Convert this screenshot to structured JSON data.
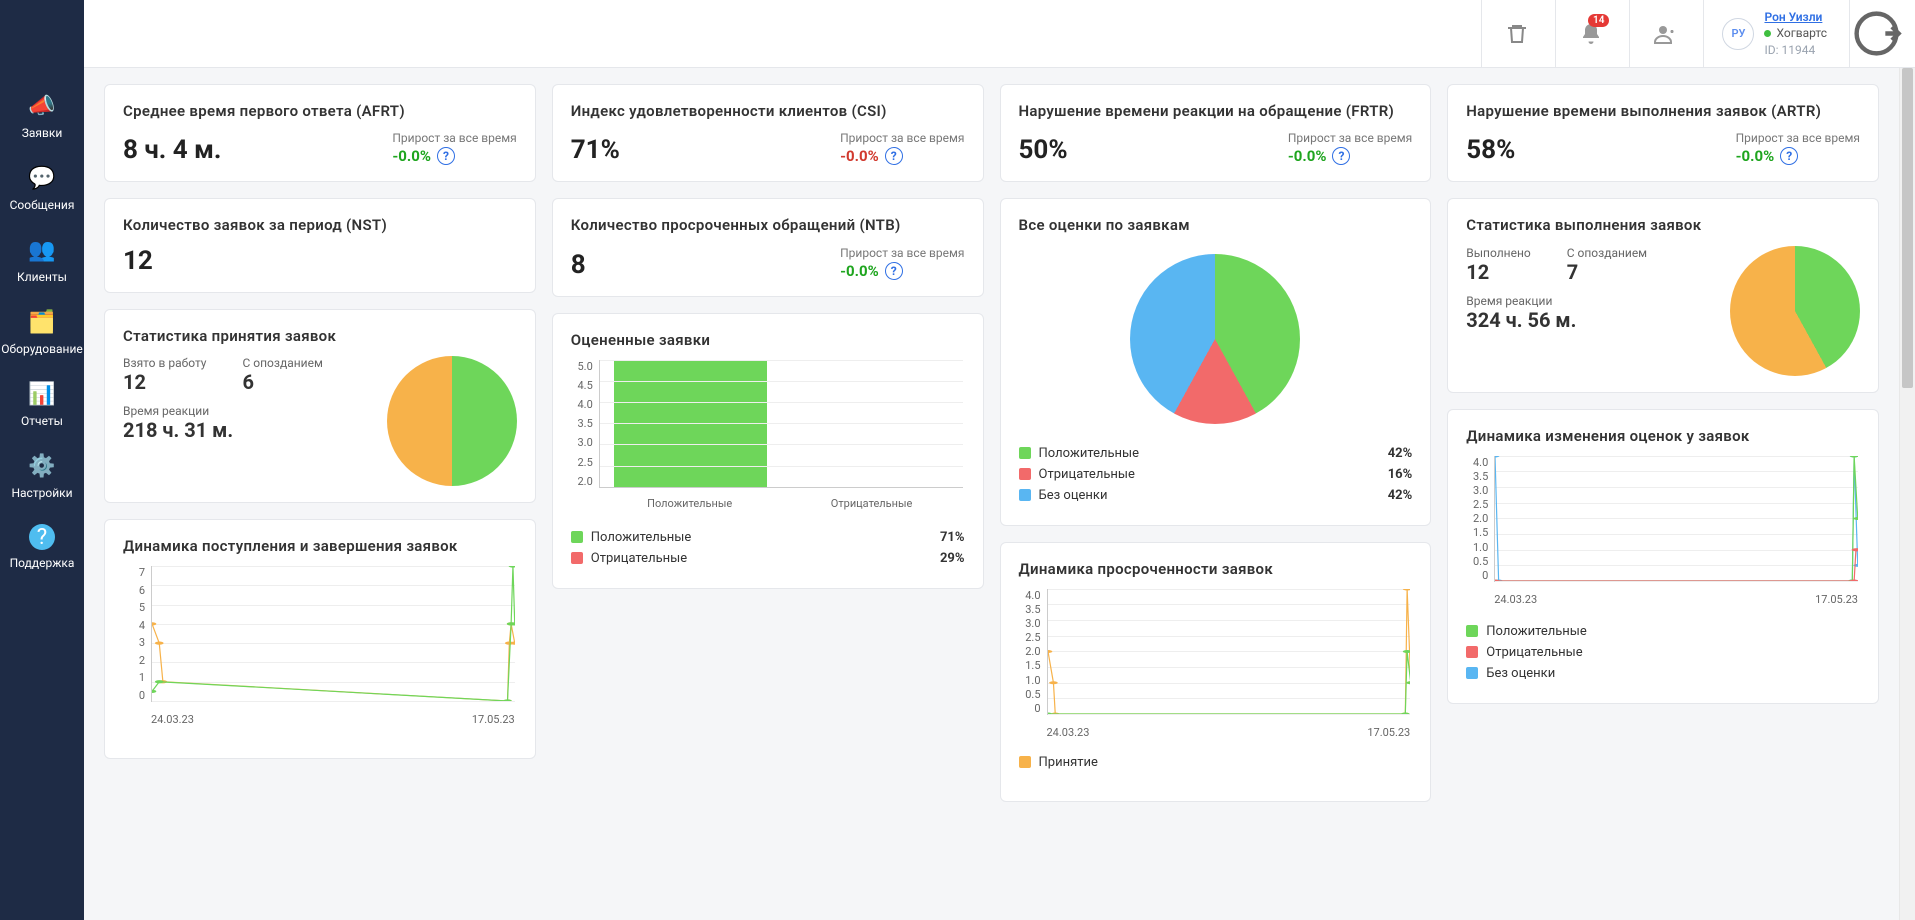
{
  "colors": {
    "green": "#6ed65a",
    "orange": "#f7b24a",
    "red": "#f26a6a",
    "blue": "#59b6f2",
    "sidebar_bg": "#1e2b45",
    "pos_text": "#1fa51f",
    "neg_text": "#d13a2f",
    "link": "#2f6fe4"
  },
  "sidebar": {
    "items": [
      {
        "label": "Заявки",
        "icon": "megaphone"
      },
      {
        "label": "Сообщения",
        "icon": "chat"
      },
      {
        "label": "Клиенты",
        "icon": "people"
      },
      {
        "label": "Оборудование",
        "icon": "equipment"
      },
      {
        "label": "Отчеты",
        "icon": "reports"
      },
      {
        "label": "Настройки",
        "icon": "gear"
      },
      {
        "label": "Поддержка",
        "icon": "help"
      }
    ]
  },
  "topbar": {
    "notification_count": "14",
    "user": {
      "initials": "РУ",
      "name": "Рон Уизли",
      "org": "Хогвартс",
      "id_label": "ID: 11944"
    }
  },
  "growth_label": "Прирост за все время",
  "cards": {
    "afrt": {
      "title": "Среднее время первого ответа (AFRT)",
      "value": "8 ч. 4 м.",
      "growth": "-0.0%",
      "growth_positive": true
    },
    "csi": {
      "title": "Индекс удовлетворенности клиентов (CSI)",
      "value": "71%",
      "growth": "-0.0%",
      "growth_positive": false
    },
    "frtr": {
      "title": "Нарушение времени реакции на обращение (FRTR)",
      "value": "50%",
      "growth": "-0.0%",
      "growth_positive": true
    },
    "artr": {
      "title": "Нарушение времени выполнения заявок (ARTR)",
      "value": "58%",
      "growth": "-0.0%",
      "growth_positive": true
    },
    "nst": {
      "title": "Количество заявок за период (NST)",
      "value": "12"
    },
    "ntb": {
      "title": "Количество просроченных обращений (NTB)",
      "value": "8",
      "growth": "-0.0%",
      "growth_positive": true
    }
  },
  "acceptance": {
    "title": "Статистика принятия заявок",
    "taken_label": "Взято в работу",
    "taken": "12",
    "late_label": "С опозданием",
    "late": "6",
    "reaction_label": "Время реакции",
    "reaction": "218 ч. 31 м.",
    "pie": {
      "slices": [
        {
          "color": "#6ed65a",
          "pct": 50
        },
        {
          "color": "#f7b24a",
          "pct": 50
        }
      ]
    }
  },
  "completion": {
    "title": "Статистика выполнения заявок",
    "done_label": "Выполнено",
    "done": "12",
    "late_label": "С опозданием",
    "late": "7",
    "reaction_label": "Время реакции",
    "reaction": "324 ч. 56 м.",
    "pie": {
      "slices": [
        {
          "color": "#6ed65a",
          "pct": 42
        },
        {
          "color": "#f7b24a",
          "pct": 58
        }
      ]
    }
  },
  "ratings_pie": {
    "title": "Все оценки по заявкам",
    "slices": [
      {
        "label": "Положительные",
        "color": "#6ed65a",
        "pct": 42
      },
      {
        "label": "Отрицательные",
        "color": "#f26a6a",
        "pct": 16
      },
      {
        "label": "Без оценки",
        "color": "#59b6f2",
        "pct": 42
      }
    ],
    "pct_labels": [
      "42%",
      "16%",
      "42%"
    ]
  },
  "rated_bar": {
    "title": "Оцененные заявки",
    "y_ticks": [
      "5.0",
      "4.5",
      "4.0",
      "3.5",
      "3.0",
      "2.5",
      "2.0"
    ],
    "y_min": 2.0,
    "y_max": 5.0,
    "bars": [
      {
        "label": "Положительные",
        "value": 5.0,
        "color": "#6ed65a"
      },
      {
        "label": "Отрицательные",
        "value": 2.0,
        "color": "#f26a6a"
      }
    ],
    "legend": [
      {
        "label": "Положительные",
        "color": "#6ed65a",
        "pct": "71%"
      },
      {
        "label": "Отрицательные",
        "color": "#f26a6a",
        "pct": "29%"
      }
    ]
  },
  "inflow": {
    "title": "Динамика поступления и завершения заявок",
    "y_ticks": [
      "7",
      "6",
      "5",
      "4",
      "3",
      "2",
      "1",
      "0"
    ],
    "y_max": 7,
    "x_labels": [
      "24.03.23",
      "17.05.23"
    ],
    "series": [
      {
        "color": "#f7b24a",
        "points": [
          [
            0,
            4
          ],
          [
            0.02,
            3
          ],
          [
            0.03,
            1
          ],
          [
            0.98,
            0
          ],
          [
            0.985,
            3
          ],
          [
            0.99,
            4
          ],
          [
            1,
            3
          ]
        ]
      },
      {
        "color": "#6ed65a",
        "points": [
          [
            0,
            0.5
          ],
          [
            0.02,
            1
          ],
          [
            0.98,
            0
          ],
          [
            0.99,
            4
          ],
          [
            0.995,
            7
          ],
          [
            1,
            4
          ]
        ]
      }
    ]
  },
  "overdue": {
    "title": "Динамика просроченности заявок",
    "y_ticks": [
      "4.0",
      "3.5",
      "3.0",
      "2.5",
      "2.0",
      "1.5",
      "1.0",
      "0.5",
      "0"
    ],
    "y_max": 4.0,
    "x_labels": [
      "24.03.23",
      "17.05.23"
    ],
    "series": [
      {
        "color": "#f7b24a",
        "points": [
          [
            0,
            2
          ],
          [
            0.015,
            1
          ],
          [
            0.02,
            0
          ],
          [
            0.985,
            0
          ],
          [
            0.99,
            4
          ],
          [
            1,
            1
          ]
        ]
      },
      {
        "color": "#6ed65a",
        "points": [
          [
            0,
            0
          ],
          [
            0.985,
            0
          ],
          [
            0.99,
            2
          ],
          [
            1,
            1
          ]
        ]
      }
    ],
    "legend": [
      {
        "label": "Принятие",
        "color": "#f7b24a"
      }
    ]
  },
  "rating_dyn": {
    "title": "Динамика изменения оценок у заявок",
    "y_ticks": [
      "4.0",
      "3.5",
      "3.0",
      "2.5",
      "2.0",
      "1.5",
      "1.0",
      "0.5",
      "0"
    ],
    "y_max": 4.0,
    "x_labels": [
      "24.03.23",
      "17.05.23"
    ],
    "series": [
      {
        "color": "#59b6f2",
        "points": [
          [
            0,
            4
          ],
          [
            0.01,
            0
          ],
          [
            0.985,
            0
          ],
          [
            0.99,
            4
          ],
          [
            1,
            0.5
          ]
        ]
      },
      {
        "color": "#6ed65a",
        "points": [
          [
            0,
            0
          ],
          [
            0.985,
            0
          ],
          [
            0.99,
            4
          ],
          [
            1,
            2
          ]
        ]
      },
      {
        "color": "#f26a6a",
        "points": [
          [
            0,
            0
          ],
          [
            0.99,
            0
          ],
          [
            0.995,
            1
          ],
          [
            1,
            1
          ]
        ]
      }
    ],
    "legend": [
      {
        "label": "Положительные",
        "color": "#6ed65a"
      },
      {
        "label": "Отрицательные",
        "color": "#f26a6a"
      },
      {
        "label": "Без оценки",
        "color": "#59b6f2"
      }
    ]
  }
}
